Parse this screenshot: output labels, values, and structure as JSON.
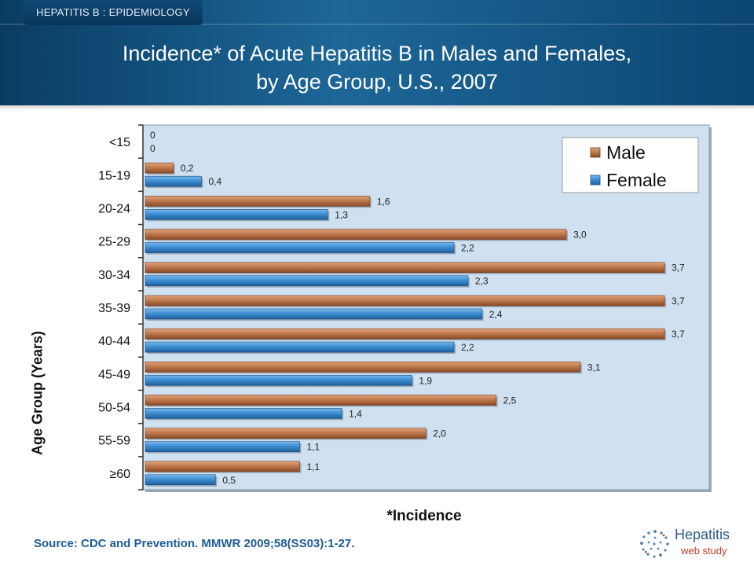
{
  "header": {
    "section_tag": "HEPATITIS B : EPIDEMIOLOGY",
    "title_line1": "Incidence* of Acute Hepatitis B in Males and Females,",
    "title_line2": "by Age Group, U.S., 2007"
  },
  "chart_data": {
    "type": "bar",
    "orientation": "horizontal",
    "categories": [
      "<15",
      "15-19",
      "20-24",
      "25-29",
      "30-34",
      "35-39",
      "40-44",
      "45-49",
      "50-54",
      "55-59",
      "≥60"
    ],
    "series": [
      {
        "name": "Male",
        "values": [
          0,
          0.2,
          1.6,
          3.0,
          3.7,
          3.7,
          3.7,
          3.1,
          2.5,
          2.0,
          1.1
        ],
        "labels": [
          "0",
          "0,2",
          "1,6",
          "3,0",
          "3,7",
          "3,7",
          "3,7",
          "3,1",
          "2,5",
          "2,0",
          "1,1"
        ],
        "color": "#c07a4e"
      },
      {
        "name": "Female",
        "values": [
          0,
          0.4,
          1.3,
          2.2,
          2.3,
          2.4,
          2.2,
          1.9,
          1.4,
          1.1,
          0.5
        ],
        "labels": [
          "0",
          "0,4",
          "1,3",
          "2,2",
          "2,3",
          "2,4",
          "2,2",
          "1,9",
          "1,4",
          "1,1",
          "0,5"
        ],
        "color": "#3d8fd4"
      }
    ],
    "xlabel": "*Incidence",
    "ylabel": "Age Group (Years)",
    "xlim": [
      0,
      4.0
    ],
    "legend_position": "top-right",
    "plot_background": "#cfe0f0"
  },
  "footer": {
    "source": "Source: CDC and Prevention. MMWR 2009;58(SS03):1-27.",
    "logo_name": "Hepatitis",
    "logo_sub": "web study"
  }
}
